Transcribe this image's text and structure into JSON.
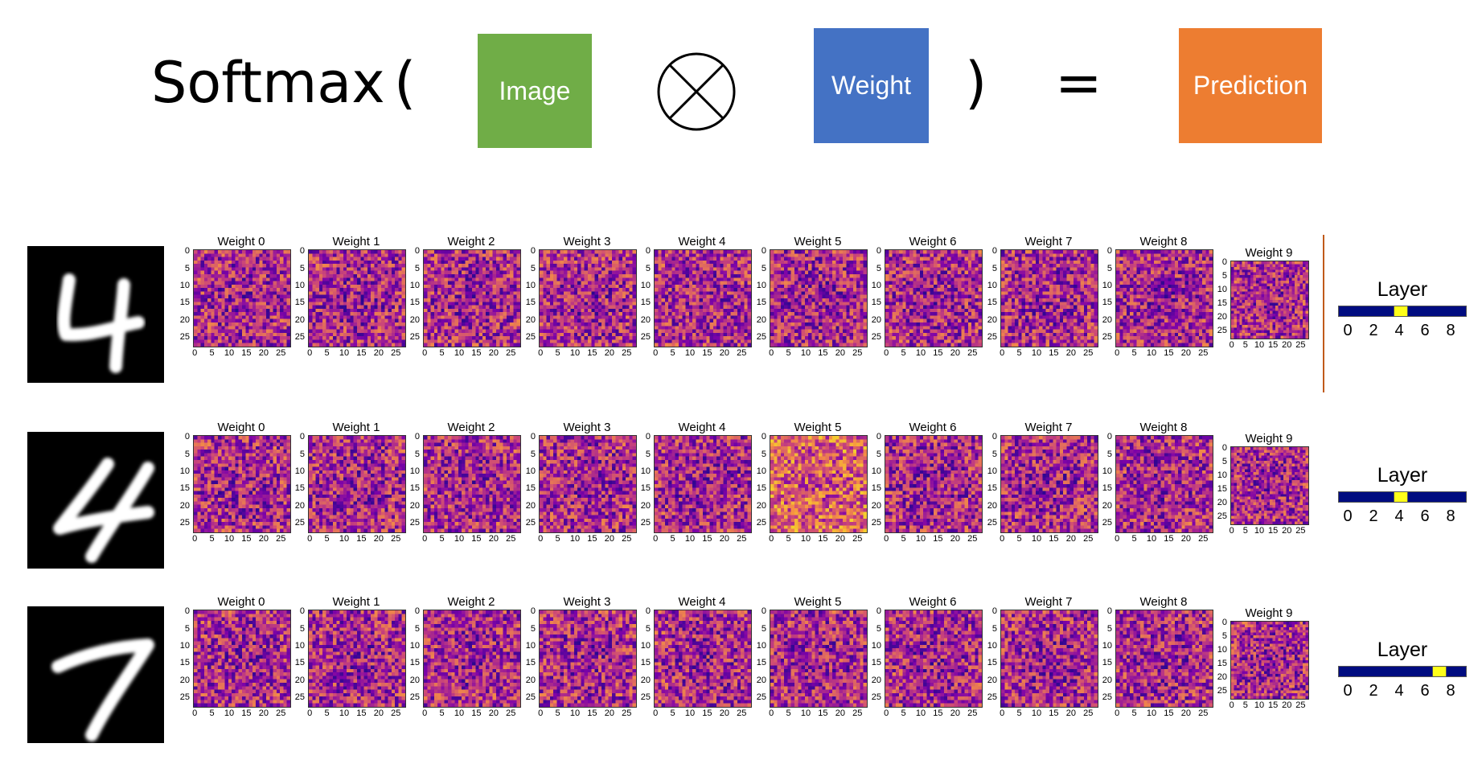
{
  "equation": {
    "softmax_label": "Softmax",
    "open_paren": "(",
    "close_paren": ")",
    "equals": "=",
    "image_label": "Image",
    "weight_label": "Weight",
    "prediction_label": "Prediction",
    "operator_icon": "circled-times-icon",
    "colors": {
      "image": "#70ad47",
      "weight": "#4472c4",
      "prediction": "#ed7d31"
    }
  },
  "rows": [
    {
      "digit": "4",
      "panel_titles": [
        "Weight 0",
        "Weight 1",
        "Weight 2",
        "Weight 3",
        "Weight 4",
        "Weight 5",
        "Weight 6",
        "Weight 7",
        "Weight 8",
        "Weight 9"
      ],
      "slider": {
        "label": "Layer",
        "ticks": [
          "0",
          "2",
          "4",
          "6",
          "8"
        ],
        "value": 4
      }
    },
    {
      "digit": "4",
      "panel_titles": [
        "Weight 0",
        "Weight 1",
        "Weight 2",
        "Weight 3",
        "Weight 4",
        "Weight 5",
        "Weight 6",
        "Weight 7",
        "Weight 8",
        "Weight 9"
      ],
      "slider": {
        "label": "Layer",
        "ticks": [
          "0",
          "2",
          "4",
          "6",
          "8"
        ],
        "value": 4
      }
    },
    {
      "digit": "7",
      "panel_titles": [
        "Weight 0",
        "Weight 1",
        "Weight 2",
        "Weight 3",
        "Weight 4",
        "Weight 5",
        "Weight 6",
        "Weight 7",
        "Weight 8",
        "Weight 9"
      ],
      "slider": {
        "label": "Layer",
        "ticks": [
          "0",
          "2",
          "4",
          "6",
          "8"
        ],
        "value": 7
      }
    }
  ],
  "heatmap": {
    "y_ticks": [
      "0",
      "5",
      "10",
      "15",
      "20",
      "25"
    ],
    "x_ticks": [
      "0",
      "5",
      "10",
      "15",
      "20",
      "25"
    ],
    "colormap": "plasma"
  }
}
